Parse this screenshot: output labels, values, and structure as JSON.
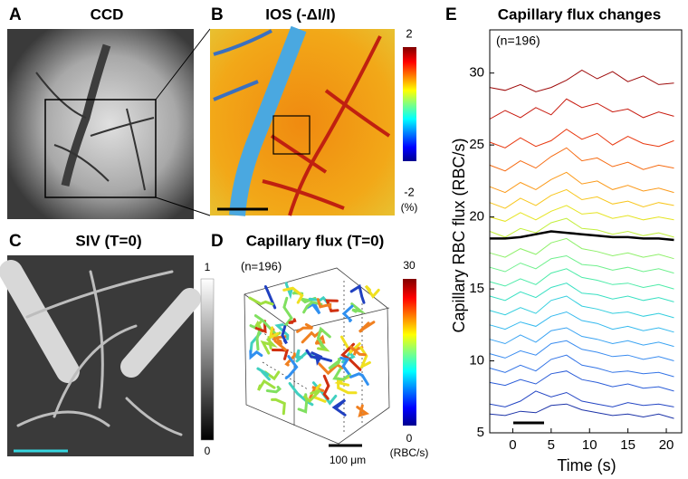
{
  "panels": {
    "A": {
      "label": "A",
      "title": "CCD"
    },
    "B": {
      "label": "B",
      "title": "IOS (-ΔI/I)",
      "colorbar": {
        "max": "2",
        "min": "-2",
        "unit": "(%)"
      }
    },
    "C": {
      "label": "C",
      "title": "SIV (T=0)",
      "colorbar": {
        "max": "1",
        "min": "0"
      }
    },
    "D": {
      "label": "D",
      "title": "Capillary flux (T=0)",
      "note": "(n=196)",
      "scalebar": "100 μm",
      "colorbar": {
        "max": "30",
        "min": "0",
        "unit": "(RBC/s)"
      }
    }
  },
  "chart_data": {
    "type": "line",
    "label": "E",
    "title": "Capillary flux changes",
    "note": "(n=196)",
    "xlabel": "Time (s)",
    "ylabel": "Capillary RBC flux (RBC/s)",
    "xlim": [
      -3,
      22
    ],
    "ylim": [
      5,
      33
    ],
    "xticks": [
      0,
      5,
      10,
      15,
      20
    ],
    "yticks": [
      5,
      10,
      15,
      20,
      25,
      30
    ],
    "x": [
      -3,
      -1,
      1,
      3,
      5,
      7,
      9,
      11,
      13,
      15,
      17,
      19,
      21
    ],
    "series": [
      {
        "color": "#9e0a0a",
        "values": [
          29,
          28.8,
          29.2,
          28.7,
          29,
          29.5,
          30.2,
          29.6,
          30.1,
          29.4,
          29.8,
          29.2,
          29.3
        ]
      },
      {
        "color": "#c81a0e",
        "values": [
          26.8,
          27.4,
          26.9,
          27.6,
          27.1,
          28.2,
          27.6,
          27.9,
          27.3,
          27.5,
          26.9,
          27.3,
          27
        ]
      },
      {
        "color": "#e8380f",
        "values": [
          25.2,
          24.8,
          25.5,
          24.9,
          25.3,
          26.1,
          25.4,
          25.8,
          25,
          25.6,
          25.1,
          24.9,
          25.3
        ]
      },
      {
        "color": "#f66b12",
        "values": [
          23.6,
          23.2,
          23.9,
          23.4,
          24.2,
          24.8,
          23.9,
          24.1,
          23.5,
          23.8,
          23.3,
          23.6,
          23.4
        ]
      },
      {
        "color": "#fb9a1a",
        "values": [
          22.1,
          21.7,
          22.4,
          21.9,
          22.6,
          23.1,
          22.3,
          22.5,
          21.9,
          22.2,
          21.8,
          22,
          21.7
        ]
      },
      {
        "color": "#f8c61e",
        "values": [
          21,
          20.6,
          21.3,
          20.8,
          21.5,
          21.9,
          21.2,
          21.4,
          20.9,
          21.1,
          20.7,
          21,
          20.8
        ]
      },
      {
        "color": "#e6e421",
        "values": [
          20,
          19.7,
          20.3,
          19.8,
          20.4,
          20.8,
          20.2,
          20.3,
          19.9,
          20.1,
          19.8,
          20,
          19.8
        ]
      },
      {
        "color": "#c2ef3c",
        "values": [
          19,
          18.6,
          19.2,
          18.9,
          19.6,
          19.9,
          19.2,
          19.1,
          18.8,
          19,
          18.7,
          18.9,
          18.6
        ]
      },
      {
        "color": "#8ff06a",
        "values": [
          17.5,
          17.2,
          17.8,
          17.4,
          18.2,
          18.5,
          17.8,
          17.6,
          17.3,
          17.5,
          17.2,
          17.4,
          17.1
        ]
      },
      {
        "color": "#6ff08d",
        "values": [
          16.5,
          16.2,
          16.8,
          16.4,
          17.1,
          17.3,
          16.7,
          16.6,
          16.3,
          16.5,
          16.2,
          16.4,
          16.1
        ]
      },
      {
        "color": "#4deba8",
        "values": [
          15.5,
          15.2,
          15.7,
          15.3,
          16.1,
          16.4,
          15.8,
          15.6,
          15.3,
          15.4,
          15.1,
          15.3,
          15
        ]
      },
      {
        "color": "#39e0c2",
        "values": [
          14.5,
          14.2,
          14.8,
          14.4,
          15.1,
          15.4,
          14.7,
          14.6,
          14.3,
          14.5,
          14.2,
          14.4,
          14.1
        ]
      },
      {
        "color": "#33cede",
        "values": [
          13.5,
          13.2,
          13.7,
          13.3,
          14.2,
          14.5,
          13.8,
          13.6,
          13.3,
          13.4,
          13.1,
          13.3,
          13
        ]
      },
      {
        "color": "#35b9ee",
        "values": [
          12.5,
          12.2,
          12.7,
          12.4,
          13.1,
          13.4,
          12.8,
          12.6,
          12.2,
          12.4,
          12.1,
          12.3,
          12
        ]
      },
      {
        "color": "#3aa3f2",
        "values": [
          11.5,
          11.2,
          11.8,
          11.3,
          12.1,
          12.3,
          11.7,
          11.5,
          11.2,
          11.4,
          11.1,
          11.3,
          11
        ]
      },
      {
        "color": "#3a8cf0",
        "values": [
          10.5,
          10.2,
          10.7,
          10.4,
          11.2,
          11.4,
          10.8,
          10.6,
          10.3,
          10.4,
          10.1,
          10.3,
          10
        ]
      },
      {
        "color": "#3374e6",
        "values": [
          9.5,
          9.2,
          9.7,
          9.3,
          10.1,
          10.4,
          9.7,
          9.5,
          9.2,
          9.3,
          9.1,
          9.2,
          8.9
        ]
      },
      {
        "color": "#2b5dd8",
        "values": [
          8.5,
          8.3,
          8.7,
          8.4,
          9.1,
          9.3,
          8.7,
          8.5,
          8.2,
          8.4,
          8.1,
          8.2,
          7.9
        ]
      },
      {
        "color": "#2446c4",
        "values": [
          7,
          6.8,
          7.2,
          7.9,
          7.5,
          7.8,
          7.2,
          7,
          6.8,
          7.1,
          6.9,
          7,
          6.8
        ]
      },
      {
        "color": "#1c33a8",
        "values": [
          6.3,
          6.2,
          6.5,
          6.4,
          6.9,
          7,
          6.6,
          6.4,
          6.2,
          6.3,
          6.1,
          6.3,
          6
        ]
      },
      {
        "color": "#000000",
        "width": 2.5,
        "values": [
          18.5,
          18.5,
          18.6,
          18.8,
          19,
          18.9,
          18.8,
          18.7,
          18.6,
          18.6,
          18.5,
          18.5,
          18.4
        ]
      }
    ]
  }
}
